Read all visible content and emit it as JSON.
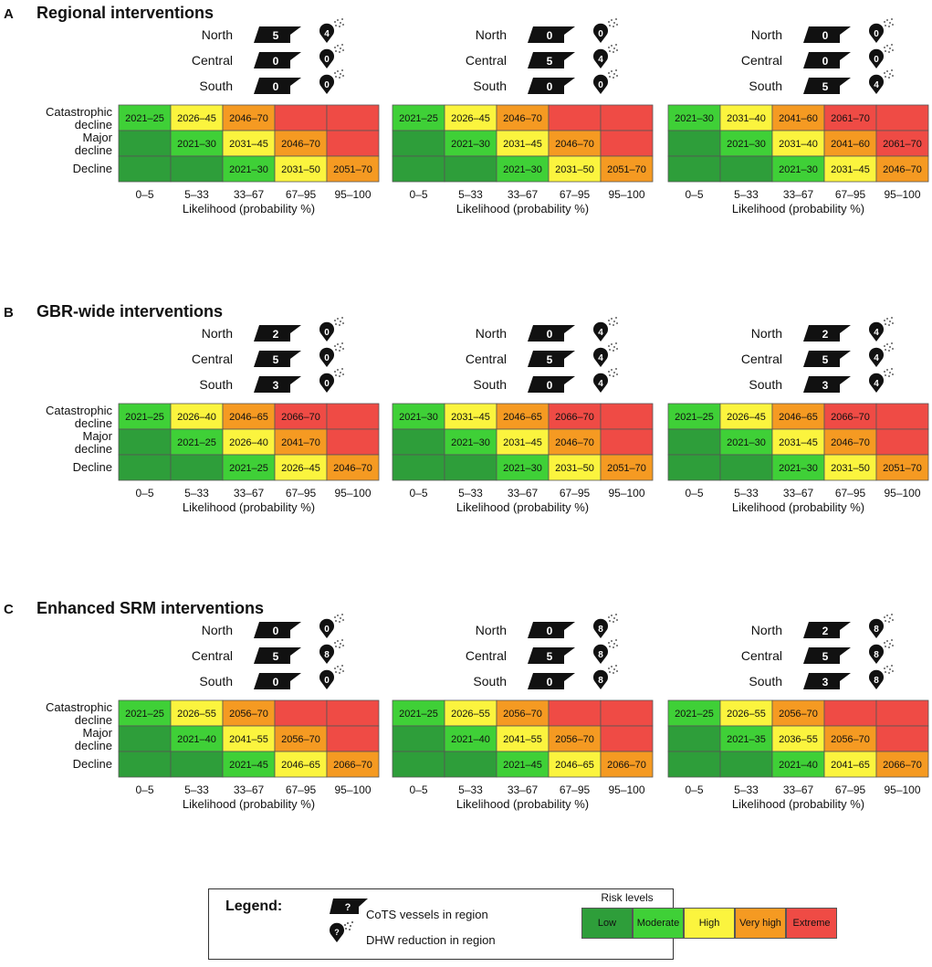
{
  "chart_data": {
    "type": "heatmap",
    "x_title": "Likelihood (probability %)",
    "x_ticks": [
      "0–5",
      "5–33",
      "33–67",
      "67–95",
      "95–100"
    ],
    "y_ticks": [
      "Catastrophic decline",
      "Major decline",
      "Decline"
    ],
    "region_labels": [
      "North",
      "Central",
      "South"
    ],
    "risk_level_names": [
      "Low",
      "Moderate",
      "High",
      "Very high",
      "Extreme"
    ],
    "sections": [
      {
        "letter": "A",
        "title": "Regional interventions",
        "panels": [
          {
            "vessels": [
              "5",
              "0",
              "0"
            ],
            "dhw": [
              "4",
              "0",
              "0"
            ],
            "grid": [
              [
                "2021–25",
                "2026–45",
                "2046–70",
                "",
                ""
              ],
              [
                "",
                "2021–30",
                "2031–45",
                "2046–70",
                ""
              ],
              [
                "",
                "",
                "2021–30",
                "2031–50",
                "2051–70"
              ]
            ],
            "risk": [
              [
                1,
                2,
                3,
                4,
                4
              ],
              [
                0,
                1,
                2,
                3,
                4
              ],
              [
                0,
                0,
                1,
                2,
                3
              ]
            ]
          },
          {
            "vessels": [
              "0",
              "5",
              "0"
            ],
            "dhw": [
              "0",
              "4",
              "0"
            ],
            "grid": [
              [
                "2021–25",
                "2026–45",
                "2046–70",
                "",
                ""
              ],
              [
                "",
                "2021–30",
                "2031–45",
                "2046–70",
                ""
              ],
              [
                "",
                "",
                "2021–30",
                "2031–50",
                "2051–70"
              ]
            ],
            "risk": [
              [
                1,
                2,
                3,
                4,
                4
              ],
              [
                0,
                1,
                2,
                3,
                4
              ],
              [
                0,
                0,
                1,
                2,
                3
              ]
            ]
          },
          {
            "vessels": [
              "0",
              "0",
              "5"
            ],
            "dhw": [
              "0",
              "0",
              "4"
            ],
            "grid": [
              [
                "2021–30",
                "2031–40",
                "2041–60",
                "2061–70",
                ""
              ],
              [
                "",
                "2021–30",
                "2031–40",
                "2041–60",
                "2061–70"
              ],
              [
                "",
                "",
                "2021–30",
                "2031–45",
                "2046–70"
              ]
            ],
            "risk": [
              [
                1,
                2,
                3,
                4,
                4
              ],
              [
                0,
                1,
                2,
                3,
                4
              ],
              [
                0,
                0,
                1,
                2,
                3
              ]
            ]
          }
        ]
      },
      {
        "letter": "B",
        "title": "GBR-wide interventions",
        "panels": [
          {
            "vessels": [
              "2",
              "5",
              "3"
            ],
            "dhw": [
              "0",
              "0",
              "0"
            ],
            "grid": [
              [
                "2021–25",
                "2026–40",
                "2046–65",
                "2066–70",
                ""
              ],
              [
                "",
                "2021–25",
                "2026–40",
                "2041–70",
                ""
              ],
              [
                "",
                "",
                "2021–25",
                "2026–45",
                "2046–70"
              ]
            ],
            "risk": [
              [
                1,
                2,
                3,
                4,
                4
              ],
              [
                0,
                1,
                2,
                3,
                4
              ],
              [
                0,
                0,
                1,
                2,
                3
              ]
            ]
          },
          {
            "vessels": [
              "0",
              "5",
              "0"
            ],
            "dhw": [
              "4",
              "4",
              "4"
            ],
            "grid": [
              [
                "2021–30",
                "2031–45",
                "2046–65",
                "2066–70",
                ""
              ],
              [
                "",
                "2021–30",
                "2031–45",
                "2046–70",
                ""
              ],
              [
                "",
                "",
                "2021–30",
                "2031–50",
                "2051–70"
              ]
            ],
            "risk": [
              [
                1,
                2,
                3,
                4,
                4
              ],
              [
                0,
                1,
                2,
                3,
                4
              ],
              [
                0,
                0,
                1,
                2,
                3
              ]
            ]
          },
          {
            "vessels": [
              "2",
              "5",
              "3"
            ],
            "dhw": [
              "4",
              "4",
              "4"
            ],
            "grid": [
              [
                "2021–25",
                "2026–45",
                "2046–65",
                "2066–70",
                ""
              ],
              [
                "",
                "2021–30",
                "2031–45",
                "2046–70",
                ""
              ],
              [
                "",
                "",
                "2021–30",
                "2031–50",
                "2051–70"
              ]
            ],
            "risk": [
              [
                1,
                2,
                3,
                4,
                4
              ],
              [
                0,
                1,
                2,
                3,
                4
              ],
              [
                0,
                0,
                1,
                2,
                3
              ]
            ]
          }
        ]
      },
      {
        "letter": "C",
        "title": "Enhanced SRM interventions",
        "panels": [
          {
            "vessels": [
              "0",
              "5",
              "0"
            ],
            "dhw": [
              "0",
              "8",
              "0"
            ],
            "grid": [
              [
                "2021–25",
                "2026–55",
                "2056–70",
                "",
                ""
              ],
              [
                "",
                "2021–40",
                "2041–55",
                "2056–70",
                ""
              ],
              [
                "",
                "",
                "2021–45",
                "2046–65",
                "2066–70"
              ]
            ],
            "risk": [
              [
                1,
                2,
                3,
                4,
                4
              ],
              [
                0,
                1,
                2,
                3,
                4
              ],
              [
                0,
                0,
                1,
                2,
                3
              ]
            ]
          },
          {
            "vessels": [
              "0",
              "5",
              "0"
            ],
            "dhw": [
              "8",
              "8",
              "8"
            ],
            "grid": [
              [
                "2021–25",
                "2026–55",
                "2056–70",
                "",
                ""
              ],
              [
                "",
                "2021–40",
                "2041–55",
                "2056–70",
                ""
              ],
              [
                "",
                "",
                "2021–45",
                "2046–65",
                "2066–70"
              ]
            ],
            "risk": [
              [
                1,
                2,
                3,
                4,
                4
              ],
              [
                0,
                1,
                2,
                3,
                4
              ],
              [
                0,
                0,
                1,
                2,
                3
              ]
            ]
          },
          {
            "vessels": [
              "2",
              "5",
              "3"
            ],
            "dhw": [
              "8",
              "8",
              "8"
            ],
            "grid": [
              [
                "2021–25",
                "2026–55",
                "2056–70",
                "",
                ""
              ],
              [
                "",
                "2021–35",
                "2036–55",
                "2056–70",
                ""
              ],
              [
                "",
                "",
                "2021–40",
                "2041–65",
                "2066–70"
              ]
            ],
            "risk": [
              [
                1,
                2,
                3,
                4,
                4
              ],
              [
                0,
                1,
                2,
                3,
                4
              ],
              [
                0,
                0,
                1,
                2,
                3
              ]
            ]
          }
        ]
      }
    ]
  },
  "colors": {
    "low": "#2e9e3a",
    "moderate": "#3fd037",
    "high": "#fbf43e",
    "very_high": "#f59a22",
    "extreme": "#ef4b45"
  },
  "legend": {
    "title": "Legend:",
    "vessel_glyph": "?",
    "dhw_glyph": "?",
    "vessel_text": "CoTS vessels in region",
    "dhw_text": "DHW reduction in region",
    "risk_title": "Risk levels",
    "risk_labels": [
      "Low",
      "Moderate",
      "High",
      "Very high",
      "Extreme"
    ]
  }
}
